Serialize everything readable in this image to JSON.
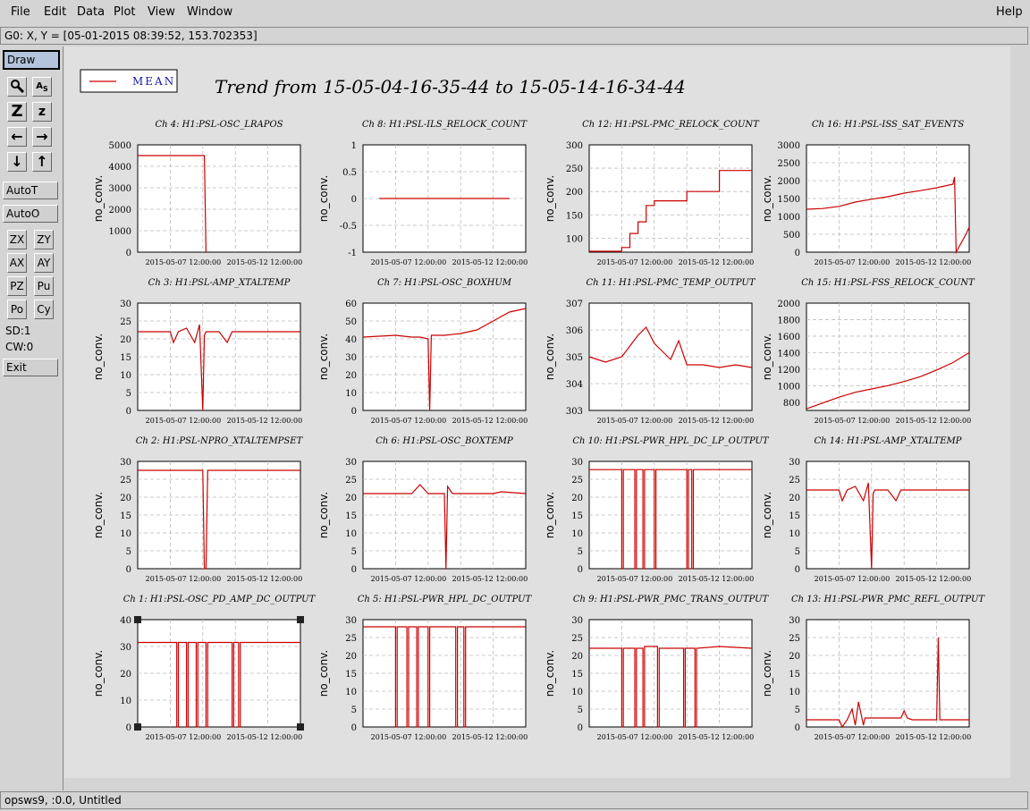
{
  "menu": {
    "left": [
      "File",
      "Edit",
      "Data",
      "Plot",
      "View",
      "Window"
    ],
    "help": "Help"
  },
  "coord_readout": "G0: X, Y = [05-01-2015 08:39:52, 153.702353]",
  "toolbar": {
    "draw": "Draw",
    "autot": "AutoT",
    "autoo": "AutoO",
    "zoom_big": "Z",
    "zoom_small": "z",
    "zx": "ZX",
    "zy": "ZY",
    "ax": "AX",
    "ay": "AY",
    "pz": "PZ",
    "pu": "Pu",
    "po": "Po",
    "cy": "Cy",
    "sd": "SD:1",
    "cw": "CW:0",
    "exit": "Exit"
  },
  "status": "opsws9, :0.0, Untitled",
  "legend": {
    "label": "MEAN",
    "color": "#cc0000"
  },
  "title": "Trend from 15-05-04-16-35-44 to 15-05-14-16-34-44",
  "chart_data": [
    {
      "type": "line",
      "title": "Ch 4: H1:PSL-OSC_LRAPOS",
      "ylabel": "no_conv.",
      "ylim": [
        0,
        5000
      ],
      "yticks": [
        "0",
        "1000",
        "2000",
        "3000",
        "4000",
        "5000"
      ],
      "xticks": [
        "2015-05-07 12:00:00",
        "2015-05-12 12:00:00"
      ],
      "series": [
        {
          "x": [
            0,
            0.4,
            0.41,
            0.42
          ],
          "y": [
            4500,
            4500,
            4500,
            0
          ]
        }
      ]
    },
    {
      "type": "line",
      "title": "Ch 8: H1:PSL-ILS_RELOCK_COUNT",
      "ylabel": "no_conv.",
      "ylim": [
        -1,
        1
      ],
      "yticks": [
        "-1",
        "-0.5",
        "0",
        "0.5",
        "1"
      ],
      "xticks": [
        "2015-05-07 12:00:00",
        "2015-05-12 12:00:00"
      ],
      "series": [
        {
          "x": [
            0.1,
            0.9
          ],
          "y": [
            0,
            0
          ]
        }
      ]
    },
    {
      "type": "line",
      "title": "Ch 12: H1:PSL-PMC_RELOCK_COUNT",
      "ylabel": "no_conv.",
      "ylim": [
        70,
        300
      ],
      "yticks": [
        "100",
        "150",
        "200",
        "250",
        "300"
      ],
      "xticks": [
        "2015-05-07 12:00:00",
        "2015-05-12 12:00:00"
      ],
      "series": [
        {
          "x": [
            0,
            0.2,
            0.2,
            0.25,
            0.25,
            0.3,
            0.3,
            0.35,
            0.35,
            0.4,
            0.4,
            0.6,
            0.6,
            0.8,
            0.8,
            1.0
          ],
          "y": [
            72,
            72,
            80,
            80,
            110,
            110,
            135,
            135,
            170,
            170,
            180,
            180,
            200,
            200,
            245,
            245
          ]
        }
      ]
    },
    {
      "type": "line",
      "title": "Ch 16: H1:PSL-ISS_SAT_EVENTS",
      "ylabel": "no_conv.",
      "ylim": [
        0,
        3000
      ],
      "yticks": [
        "0",
        "500",
        "1000",
        "1500",
        "2000",
        "2500",
        "3000"
      ],
      "xticks": [
        "2015-05-07 12:00:00",
        "2015-05-12 12:00:00"
      ],
      "series": [
        {
          "x": [
            0,
            0.1,
            0.2,
            0.3,
            0.4,
            0.5,
            0.6,
            0.7,
            0.8,
            0.9,
            0.91,
            0.92,
            0.98,
            1.0
          ],
          "y": [
            1200,
            1220,
            1280,
            1400,
            1480,
            1550,
            1650,
            1720,
            1800,
            1900,
            2100,
            0,
            500,
            700
          ]
        }
      ]
    },
    {
      "type": "line",
      "title": "Ch 3: H1:PSL-AMP_XTALTEMP",
      "ylabel": "no_conv.",
      "ylim": [
        0,
        30
      ],
      "yticks": [
        "0",
        "5",
        "10",
        "15",
        "20",
        "25",
        "30"
      ],
      "xticks": [
        "2015-05-07 12:00:00",
        "2015-05-12 12:00:00"
      ],
      "series": [
        {
          "x": [
            0,
            0.2,
            0.22,
            0.25,
            0.3,
            0.35,
            0.38,
            0.4,
            0.41,
            0.42,
            0.45,
            0.5,
            0.55,
            0.58,
            0.6,
            0.8,
            1.0
          ],
          "y": [
            22,
            22,
            19,
            22,
            23,
            19,
            24,
            0,
            21,
            22,
            22,
            22,
            19,
            22,
            22,
            22,
            22
          ]
        }
      ]
    },
    {
      "type": "line",
      "title": "Ch 7: H1:PSL-OSC_BOXHUM",
      "ylabel": "no_conv.",
      "ylim": [
        0,
        60
      ],
      "yticks": [
        "0",
        "10",
        "20",
        "30",
        "40",
        "50",
        "60"
      ],
      "xticks": [
        "2015-05-07 12:00:00",
        "2015-05-12 12:00:00"
      ],
      "series": [
        {
          "x": [
            0,
            0.2,
            0.3,
            0.35,
            0.4,
            0.41,
            0.42,
            0.5,
            0.6,
            0.7,
            0.8,
            0.9,
            1.0
          ],
          "y": [
            41,
            42,
            41,
            41,
            40,
            0,
            42,
            42,
            43,
            45,
            50,
            55,
            57
          ]
        }
      ]
    },
    {
      "type": "line",
      "title": "Ch 11: H1:PSL-PMC_TEMP_OUTPUT",
      "ylabel": "no_conv.",
      "ylim": [
        303,
        307
      ],
      "yticks": [
        "303",
        "304",
        "305",
        "306",
        "307"
      ],
      "xticks": [
        "2015-05-07 12:00:00",
        "2015-05-12 12:00:00"
      ],
      "series": [
        {
          "x": [
            0,
            0.1,
            0.2,
            0.25,
            0.3,
            0.35,
            0.4,
            0.45,
            0.5,
            0.55,
            0.6,
            0.7,
            0.8,
            0.9,
            1.0
          ],
          "y": [
            305,
            304.8,
            305,
            305.4,
            305.8,
            306.1,
            305.5,
            305.2,
            304.9,
            305.6,
            304.7,
            304.7,
            304.6,
            304.7,
            304.6
          ]
        }
      ]
    },
    {
      "type": "line",
      "title": "Ch 15: H1:PSL-FSS_RELOCK_COUNT",
      "ylabel": "no_conv.",
      "ylim": [
        700,
        2000
      ],
      "yticks": [
        "800",
        "1000",
        "1200",
        "1400",
        "1600",
        "1800",
        "2000"
      ],
      "xticks": [
        "2015-05-07 12:00:00",
        "2015-05-12 12:00:00"
      ],
      "series": [
        {
          "x": [
            0,
            0.1,
            0.2,
            0.3,
            0.4,
            0.5,
            0.6,
            0.7,
            0.8,
            0.9,
            1.0
          ],
          "y": [
            720,
            790,
            860,
            920,
            960,
            1000,
            1050,
            1110,
            1190,
            1280,
            1400
          ]
        }
      ]
    },
    {
      "type": "line",
      "title": "Ch 2: H1:PSL-NPRO_XTALTEMPSET",
      "ylabel": "no_conv.",
      "ylim": [
        0,
        30
      ],
      "yticks": [
        "0",
        "5",
        "10",
        "15",
        "20",
        "25",
        "30"
      ],
      "xticks": [
        "2015-05-07 12:00:00",
        "2015-05-12 12:00:00"
      ],
      "series": [
        {
          "x": [
            0,
            0.4,
            0.41,
            0.42,
            0.43,
            1.0
          ],
          "y": [
            27.5,
            27.5,
            0,
            0,
            27.5,
            27.5
          ]
        }
      ]
    },
    {
      "type": "line",
      "title": "Ch 6: H1:PSL-OSC_BOXTEMP",
      "ylabel": "no_conv.",
      "ylim": [
        0,
        30
      ],
      "yticks": [
        "0",
        "5",
        "10",
        "15",
        "20",
        "25",
        "30"
      ],
      "xticks": [
        "2015-05-07 12:00:00",
        "2015-05-12 12:00:00"
      ],
      "series": [
        {
          "x": [
            0,
            0.3,
            0.35,
            0.4,
            0.5,
            0.51,
            0.52,
            0.55,
            0.8,
            0.85,
            1.0
          ],
          "y": [
            21,
            21,
            23.5,
            21,
            21,
            0,
            23,
            21,
            21,
            21.5,
            21
          ]
        }
      ]
    },
    {
      "type": "line",
      "title": "Ch 10: H1:PSL-PWR_HPL_DC_LP_OUTPUT",
      "ylabel": "no_conv.",
      "ylim": [
        0,
        30
      ],
      "yticks": [
        "0",
        "5",
        "10",
        "15",
        "20",
        "25",
        "30"
      ],
      "xticks": [
        "2015-05-07 12:00:00",
        "2015-05-12 12:00:00"
      ],
      "series": [
        {
          "x": [
            0,
            0.2,
            0.2,
            0.21,
            0.21,
            0.28,
            0.28,
            0.29,
            0.29,
            0.33,
            0.33,
            0.34,
            0.34,
            0.4,
            0.4,
            0.41,
            0.41,
            0.6,
            0.6,
            0.61,
            0.61,
            0.63,
            0.63,
            0.64,
            0.64,
            1.0
          ],
          "y": [
            27.7,
            27.7,
            0,
            0,
            27.7,
            27.7,
            0,
            0,
            27.7,
            27.7,
            0,
            0,
            27.7,
            27.7,
            0,
            0,
            27.7,
            27.7,
            0,
            0,
            27.7,
            27.7,
            0,
            0,
            27.7,
            27.7
          ]
        }
      ]
    },
    {
      "type": "line",
      "title": "Ch 14: H1:PSL-AMP_XTALTEMP",
      "ylabel": "no_conv.",
      "ylim": [
        0,
        30
      ],
      "yticks": [
        "0",
        "5",
        "10",
        "15",
        "20",
        "25",
        "30"
      ],
      "xticks": [
        "2015-05-07 12:00:00",
        "2015-05-12 12:00:00"
      ],
      "series": [
        {
          "x": [
            0,
            0.2,
            0.22,
            0.25,
            0.3,
            0.35,
            0.38,
            0.4,
            0.41,
            0.42,
            0.45,
            0.5,
            0.55,
            0.58,
            0.6,
            0.8,
            1.0
          ],
          "y": [
            22,
            22,
            19,
            22,
            23,
            19,
            24,
            0,
            21,
            22,
            22,
            22,
            19,
            22,
            22,
            22,
            22
          ]
        }
      ]
    },
    {
      "type": "line",
      "title": "Ch 1: H1:PSL-OSC_PD_AMP_DC_OUTPUT",
      "ylabel": "no_conv.",
      "ylim": [
        0,
        40
      ],
      "yticks": [
        "0",
        "10",
        "20",
        "30",
        "40"
      ],
      "xticks": [
        "2015-05-07 12:00:00",
        "2015-05-12 12:00:00"
      ],
      "series": [
        {
          "x": [
            0,
            0.24,
            0.24,
            0.25,
            0.25,
            0.3,
            0.3,
            0.31,
            0.31,
            0.36,
            0.36,
            0.37,
            0.37,
            0.42,
            0.42,
            0.43,
            0.43,
            0.58,
            0.58,
            0.59,
            0.59,
            0.62,
            0.62,
            0.63,
            0.63,
            1.0
          ],
          "y": [
            31.5,
            31.5,
            0,
            0,
            31.5,
            31.5,
            0,
            0,
            31.5,
            31.5,
            0,
            0,
            31.5,
            31.5,
            0,
            0,
            31.5,
            31.5,
            0,
            0,
            31.5,
            31.5,
            0,
            0,
            31.5,
            31.5
          ]
        }
      ]
    },
    {
      "type": "line",
      "title": "Ch 5: H1:PSL-PWR_HPL_DC_OUTPUT",
      "ylabel": "no_conv.",
      "ylim": [
        0,
        30
      ],
      "yticks": [
        "0",
        "5",
        "10",
        "15",
        "20",
        "25",
        "30"
      ],
      "xticks": [
        "2015-05-07 12:00:00",
        "2015-05-12 12:00:00"
      ],
      "series": [
        {
          "x": [
            0,
            0.2,
            0.2,
            0.21,
            0.21,
            0.27,
            0.27,
            0.28,
            0.28,
            0.33,
            0.33,
            0.34,
            0.34,
            0.4,
            0.4,
            0.41,
            0.41,
            0.57,
            0.57,
            0.58,
            0.58,
            0.62,
            0.62,
            0.63,
            0.63,
            1.0
          ],
          "y": [
            28,
            28,
            0,
            0,
            28,
            28,
            0,
            0,
            28,
            28,
            0,
            0,
            28,
            28,
            0,
            0,
            28,
            28,
            0,
            0,
            28,
            28,
            0,
            0,
            28,
            28
          ]
        }
      ]
    },
    {
      "type": "line",
      "title": "Ch 9: H1:PSL-PWR_PMC_TRANS_OUTPUT",
      "ylabel": "no_conv.",
      "ylim": [
        0,
        30
      ],
      "yticks": [
        "0",
        "5",
        "10",
        "15",
        "20",
        "25",
        "30"
      ],
      "xticks": [
        "2015-05-07 12:00:00",
        "2015-05-12 12:00:00"
      ],
      "series": [
        {
          "x": [
            0,
            0.2,
            0.2,
            0.21,
            0.21,
            0.28,
            0.28,
            0.29,
            0.29,
            0.33,
            0.33,
            0.34,
            0.34,
            0.42,
            0.42,
            0.43,
            0.43,
            0.58,
            0.58,
            0.59,
            0.59,
            0.65,
            0.65,
            0.66,
            0.66,
            0.8,
            1.0
          ],
          "y": [
            22,
            22,
            0,
            0,
            22,
            22,
            0,
            0,
            22,
            22,
            0,
            0,
            22.5,
            22.5,
            0,
            0,
            22,
            22,
            0,
            0,
            22,
            22,
            0,
            0,
            22,
            22.5,
            22
          ]
        }
      ]
    },
    {
      "type": "line",
      "title": "Ch 13: H1:PSL-PWR_PMC_REFL_OUTPUT",
      "ylabel": "no_conv.",
      "ylim": [
        0,
        30
      ],
      "yticks": [
        "0",
        "5",
        "10",
        "15",
        "20",
        "25",
        "30"
      ],
      "xticks": [
        "2015-05-07 12:00:00",
        "2015-05-12 12:00:00"
      ],
      "series": [
        {
          "x": [
            0,
            0.2,
            0.22,
            0.25,
            0.28,
            0.3,
            0.32,
            0.35,
            0.36,
            0.4,
            0.5,
            0.58,
            0.6,
            0.62,
            0.65,
            0.8,
            0.81,
            0.82,
            0.83,
            1.0
          ],
          "y": [
            2,
            2,
            0,
            2,
            5,
            0.5,
            7,
            0.5,
            2.5,
            2.5,
            2.5,
            2.5,
            4.5,
            2.5,
            2,
            2,
            25,
            2,
            2,
            2
          ]
        }
      ]
    }
  ]
}
